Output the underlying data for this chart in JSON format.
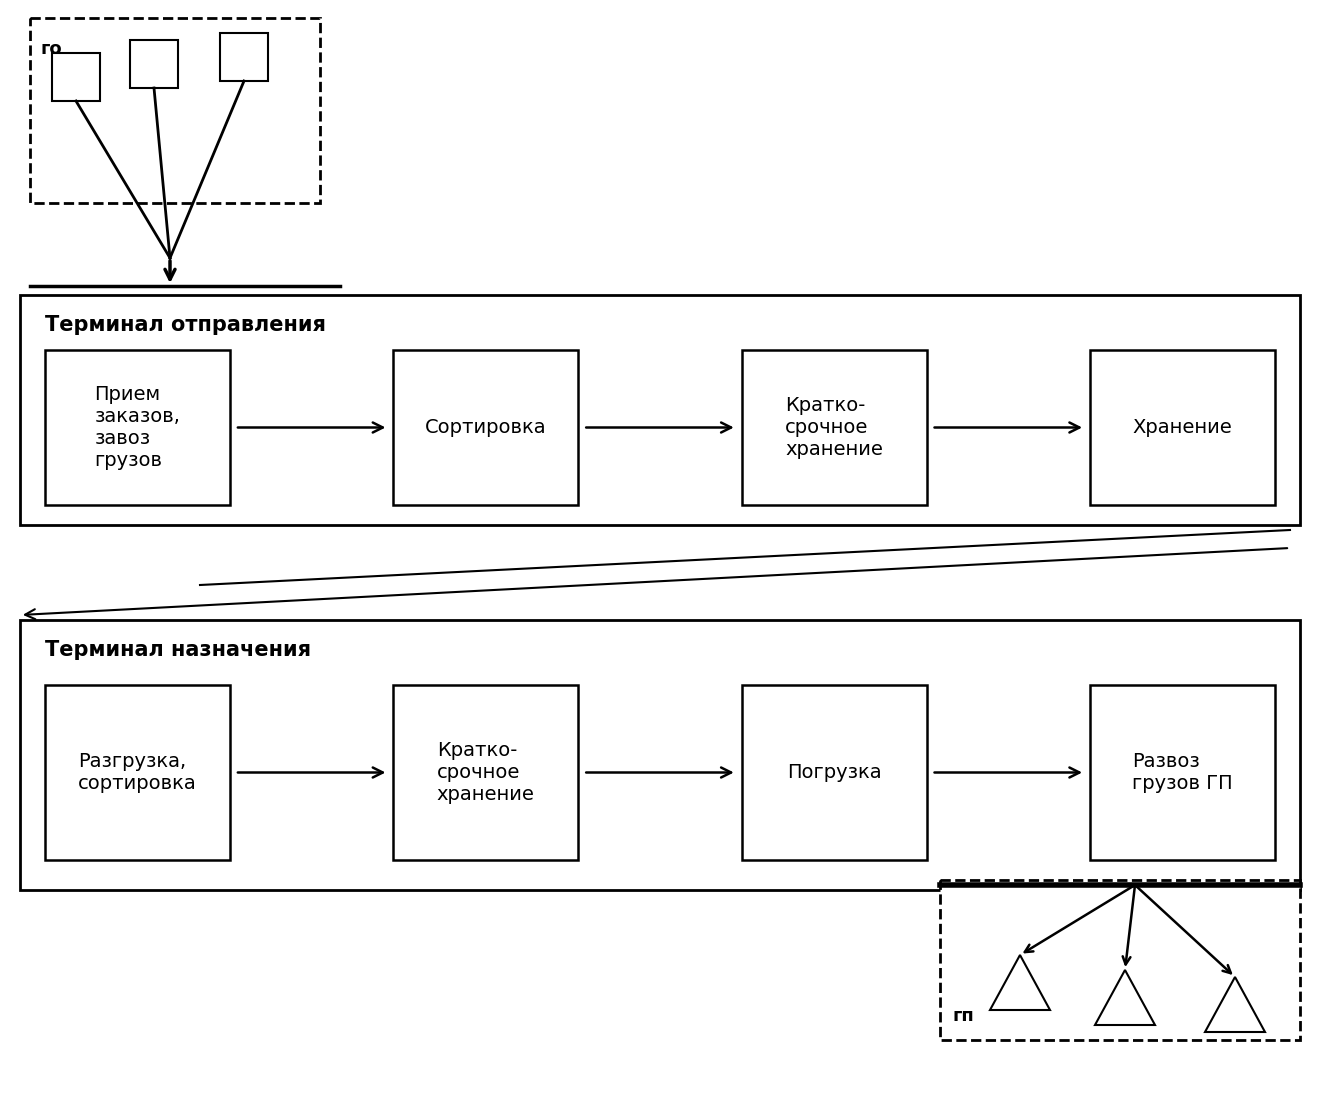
{
  "bg_color": "#ffffff",
  "terminal1_label": "Терминал отправления",
  "terminal2_label": "Терминал назначения",
  "terminal1_boxes_text": [
    "Прием\nзаказов,\nзавоз\nгрузов",
    "Сортировка",
    "Кратко-\nсрочное\nхранение",
    "Хранение"
  ],
  "terminal2_boxes_text": [
    "Разгрузка,\nсортировка",
    "Кратко-\nсрочное\nхранение",
    "Погрузка",
    "Развоз\nгрузов ГП"
  ],
  "go_label": "го",
  "gp_label": "гп",
  "font_size_box": 14,
  "font_size_title": 15,
  "font_size_label": 13
}
